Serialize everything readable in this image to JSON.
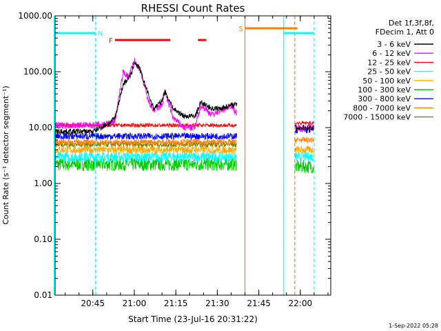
{
  "chart_data": {
    "type": "line",
    "title": "RHESSI Count Rates",
    "xlabel": "Start Time (23-Jul-16 20:31:22)",
    "ylabel": "Count Rate (s⁻¹ detector segment⁻¹)",
    "y_scale": "log",
    "ylim": [
      0.01,
      1000
    ],
    "xlim": [
      "20:31:22",
      "22:11:00"
    ],
    "y_ticks": [
      "0.01",
      "0.10",
      "1.00",
      "10.00",
      "100.00",
      "1000.00"
    ],
    "x_ticks": [
      "20:45",
      "21:00",
      "21:15",
      "21:30",
      "21:45",
      "22:00"
    ],
    "legend_placement": "right",
    "legend_header": [
      "Det 1f,3f,8f,",
      "FDecim 1, Att 0"
    ],
    "timestamp": "1-Sep-2022 05:28",
    "series": [
      {
        "name": "3 - 6 keV",
        "color": "#000000",
        "x": [
          "20:31",
          "20:45",
          "20:51",
          "20:53",
          "20:56",
          "20:59",
          "21:00",
          "21:02",
          "21:05",
          "21:07",
          "21:10",
          "21:11",
          "21:14",
          "21:18",
          "21:22",
          "21:24",
          "21:28",
          "21:31",
          "21:35",
          "21:37"
        ],
        "y": [
          8.5,
          8.5,
          12,
          15,
          60,
          90,
          150,
          110,
          40,
          22,
          30,
          45,
          22,
          16,
          16,
          28,
          22,
          22,
          25,
          26
        ]
      },
      {
        "name": "6 - 12 keV",
        "color": "#ff00ff",
        "x": [
          "20:31",
          "20:45",
          "20:51",
          "20:53",
          "20:56",
          "20:58",
          "21:00",
          "21:02",
          "21:05",
          "21:07",
          "21:10",
          "21:11",
          "21:14",
          "21:18",
          "21:22",
          "21:24",
          "21:28",
          "21:31",
          "21:35",
          "21:37"
        ],
        "y": [
          11,
          11,
          12,
          13,
          100,
          80,
          160,
          110,
          30,
          20,
          25,
          45,
          15,
          10,
          10,
          25,
          17,
          20,
          25,
          18
        ]
      },
      {
        "name": "12 - 25 keV",
        "color": "#ff0000",
        "x": [
          "20:31",
          "21:37"
        ],
        "y": [
          11,
          11
        ]
      },
      {
        "name": "25 - 50 keV",
        "color": "#00ffff",
        "x": [
          "20:31",
          "21:37"
        ],
        "y": [
          3,
          3
        ]
      },
      {
        "name": "50 - 100 keV",
        "color": "#ffaa00",
        "x": [
          "20:31",
          "21:37"
        ],
        "y": [
          4,
          4
        ]
      },
      {
        "name": "100 - 300 keV",
        "color": "#00cc00",
        "x": [
          "20:31",
          "21:37"
        ],
        "y": [
          2.2,
          2.2
        ]
      },
      {
        "name": "300 - 800 keV",
        "color": "#0000ff",
        "x": [
          "20:31",
          "21:37"
        ],
        "y": [
          7,
          7
        ]
      },
      {
        "name": "800 - 7000 keV",
        "color": "#ff8000",
        "x": [
          "20:31",
          "21:37"
        ],
        "y": [
          5.5,
          5.5
        ]
      },
      {
        "name": "7000 - 15000 keV",
        "color": "#808000",
        "x": [
          "20:31",
          "21:37"
        ],
        "y": [
          5,
          5
        ]
      }
    ],
    "gap_segment": {
      "x": [
        "21:58",
        "22:05"
      ],
      "values": {
        "3 - 6 keV": 10,
        "6 - 12 keV": 10,
        "12 - 25 keV": 12,
        "25 - 50 keV": 3,
        "50 - 100 keV": 4,
        "100 - 300 keV": 2,
        "300 - 800 keV": 9,
        "800 - 7000 keV": 6
      }
    },
    "state_bars": [
      {
        "label": "N",
        "color": "#00ffff",
        "x": [
          "20:31",
          "20:46"
        ]
      },
      {
        "label": "N",
        "color": "#00ffff",
        "x": [
          "21:54",
          "22:05"
        ]
      },
      {
        "label": "F",
        "color": "#ff0000",
        "x": [
          "20:53",
          "21:13"
        ]
      },
      {
        "label": "F",
        "color": "#ff0000",
        "x": [
          "21:23",
          "21:26"
        ]
      },
      {
        "label": "S",
        "color": "#ff8000",
        "x": [
          "21:40",
          "21:59"
        ]
      }
    ],
    "vertical_lines": [
      {
        "x": "20:31",
        "color": "#00ffff",
        "style": "solid"
      },
      {
        "x": "20:46",
        "color": "#00ffff",
        "style": "dashed"
      },
      {
        "x": "21:40",
        "color": "#ff8000",
        "style": "solid"
      },
      {
        "x": "21:54",
        "color": "#00ffff",
        "style": "solid"
      },
      {
        "x": "21:58",
        "color": "#ff8000",
        "style": "dashed"
      },
      {
        "x": "22:05",
        "color": "#00ffff",
        "style": "dashed"
      }
    ]
  }
}
